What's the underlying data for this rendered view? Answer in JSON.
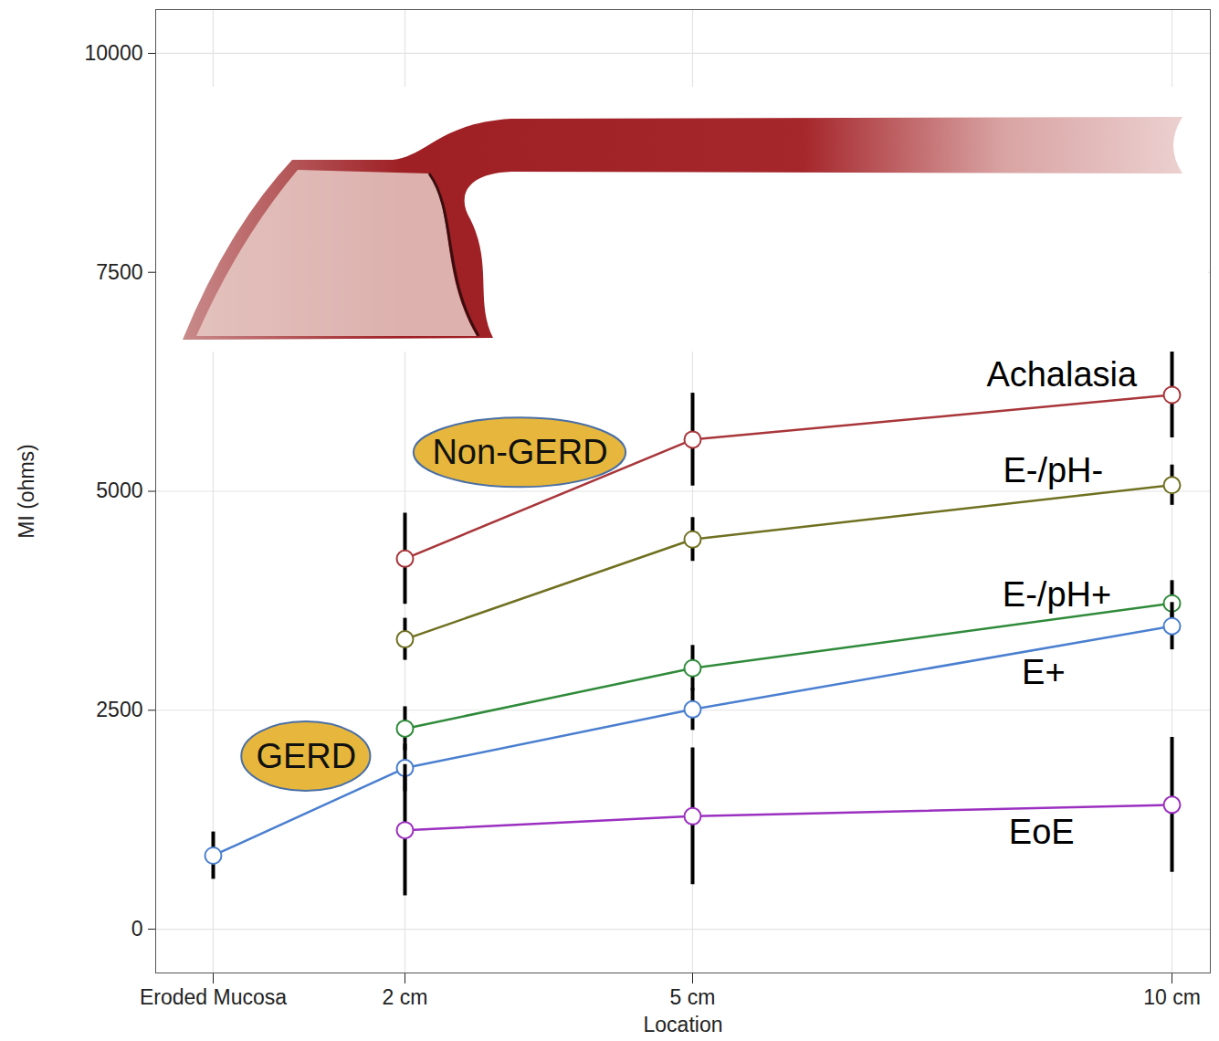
{
  "chart_data": {
    "type": "line",
    "x_label": "Location",
    "y_label": "MI (ohms)",
    "x": [
      0,
      2,
      5,
      10
    ],
    "xlim": [
      -0.6,
      10.4
    ],
    "xticks": [
      {
        "value": 0,
        "label": "Eroded Mucosa"
      },
      {
        "value": 2,
        "label": "2 cm"
      },
      {
        "value": 5,
        "label": "5 cm"
      },
      {
        "value": 10,
        "label": "10 cm"
      }
    ],
    "ylim": [
      -500,
      10500
    ],
    "yticks": [
      0,
      2500,
      5000,
      7500,
      10000
    ],
    "grid": true,
    "marker": "circle",
    "series": [
      {
        "name": "Achalasia",
        "color": "#a8363a",
        "values": [
          null,
          4230,
          5590,
          6100
        ],
        "errors": [
          null,
          520,
          530,
          490
        ],
        "label_x": 8.85,
        "label_y": 6330
      },
      {
        "name": "E-/pH-",
        "color": "#6f7020",
        "values": [
          null,
          3310,
          4450,
          5070
        ],
        "errors": [
          null,
          240,
          250,
          230
        ],
        "label_x": 8.76,
        "label_y": 5230
      },
      {
        "name": "E-/pH+",
        "color": "#2f8a3a",
        "values": [
          null,
          2290,
          2980,
          3720
        ],
        "errors": [
          null,
          250,
          260,
          260
        ],
        "label_x": 8.8,
        "label_y": 3810
      },
      {
        "name": "E+",
        "color": "#4a7fd0",
        "values": [
          840,
          1840,
          2510,
          3460
        ],
        "errors": [
          270,
          270,
          240,
          270
        ],
        "label_x": 8.66,
        "label_y": 2930
      },
      {
        "name": "EoE",
        "color": "#9b30c0",
        "values": [
          null,
          1130,
          1290,
          1420
        ],
        "errors": [
          null,
          750,
          780,
          770
        ],
        "label_x": 8.64,
        "label_y": 1100
      }
    ],
    "annotations": [
      {
        "text": "Non-GERD",
        "x": 3.2,
        "y": 5440
      },
      {
        "text": "GERD",
        "x": 0.97,
        "y": 1970
      }
    ]
  }
}
